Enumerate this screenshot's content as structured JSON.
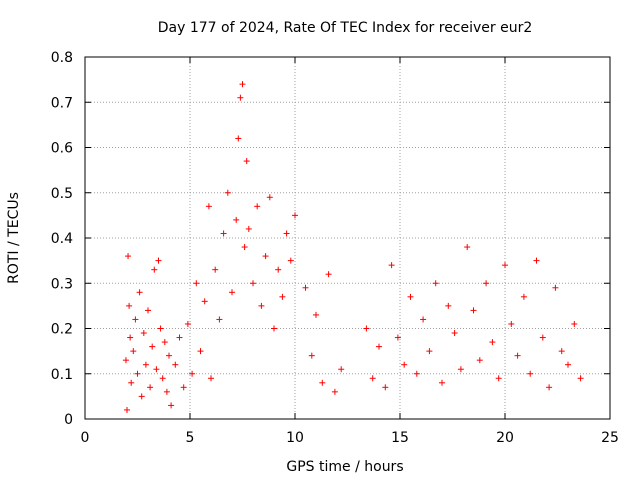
{
  "chart_data": {
    "type": "scatter",
    "title": "Day 177 of 2024, Rate Of TEC Index for receiver eur2",
    "xlabel": "GPS time / hours",
    "ylabel": "ROTI / TECUs",
    "xlim": [
      0,
      25
    ],
    "ylim": [
      0,
      0.8
    ],
    "xticks": [
      "0",
      "5",
      "10",
      "15",
      "20",
      "25"
    ],
    "yticks": [
      "0",
      "0.1",
      "0.2",
      "0.3",
      "0.4",
      "0.5",
      "0.6",
      "0.7",
      "0.8"
    ],
    "grid": true,
    "marker": "+",
    "color": "#ff0000",
    "series": [
      {
        "x": [
          1.95,
          2.0,
          2.05,
          2.1,
          2.15,
          2.2,
          2.3,
          2.4,
          2.5,
          2.6,
          2.7,
          2.8,
          2.9,
          3.0,
          3.1,
          3.2,
          3.3,
          3.4,
          3.5,
          3.6,
          3.7,
          3.8,
          3.9,
          4.0,
          4.1,
          4.3,
          4.5,
          4.7,
          4.9,
          5.1,
          5.3,
          5.5,
          5.7,
          5.9,
          6.0,
          6.2,
          6.4,
          6.6,
          6.8,
          7.0,
          7.2,
          7.3,
          7.4,
          7.5,
          7.6,
          7.7,
          7.8,
          8.0,
          8.2,
          8.4,
          8.6,
          8.8,
          9.0,
          9.2,
          9.4,
          9.6,
          9.8,
          10.0,
          10.5,
          10.8,
          11.0,
          11.3,
          11.6,
          11.9,
          12.2,
          13.4,
          13.7,
          14.0,
          14.3,
          14.6,
          14.9,
          15.2,
          15.5,
          15.8,
          16.1,
          16.4,
          16.7,
          17.0,
          17.3,
          17.6,
          17.9,
          18.2,
          18.5,
          18.8,
          19.1,
          19.4,
          19.7,
          20.0,
          20.3,
          20.6,
          20.9,
          21.2,
          21.5,
          21.8,
          22.1,
          22.4,
          22.7,
          23.0,
          23.3,
          23.6
        ],
        "y": [
          0.13,
          0.02,
          0.36,
          0.25,
          0.18,
          0.08,
          0.15,
          0.22,
          0.1,
          0.28,
          0.05,
          0.19,
          0.12,
          0.24,
          0.07,
          0.16,
          0.33,
          0.11,
          0.35,
          0.2,
          0.09,
          0.17,
          0.06,
          0.14,
          0.03,
          0.12,
          0.18,
          0.07,
          0.21,
          0.1,
          0.3,
          0.15,
          0.26,
          0.47,
          0.09,
          0.33,
          0.22,
          0.41,
          0.5,
          0.28,
          0.44,
          0.62,
          0.71,
          0.74,
          0.38,
          0.57,
          0.42,
          0.3,
          0.47,
          0.25,
          0.36,
          0.49,
          0.2,
          0.33,
          0.27,
          0.41,
          0.35,
          0.45,
          0.29,
          0.14,
          0.23,
          0.08,
          0.32,
          0.06,
          0.11,
          0.2,
          0.09,
          0.16,
          0.07,
          0.34,
          0.18,
          0.12,
          0.27,
          0.1,
          0.22,
          0.15,
          0.3,
          0.08,
          0.25,
          0.19,
          0.11,
          0.38,
          0.24,
          0.13,
          0.3,
          0.17,
          0.09,
          0.34,
          0.21,
          0.14,
          0.27,
          0.1,
          0.35,
          0.18,
          0.07,
          0.29,
          0.15,
          0.12,
          0.21,
          0.09
        ]
      }
    ]
  }
}
